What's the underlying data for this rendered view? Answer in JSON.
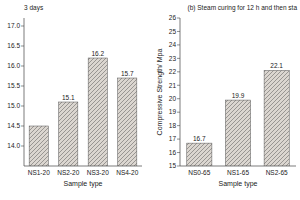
{
  "chart_data": [
    {
      "type": "bar",
      "subtitle": "3 days",
      "categories": [
        "NS1-20",
        "NS2-20",
        "NS3-20",
        "NS4-20"
      ],
      "values": [
        14.5,
        15.1,
        16.2,
        15.7
      ],
      "value_labels": [
        null,
        "15.1",
        "16.2",
        "15.7"
      ],
      "data_labels": true,
      "xlabel": "Sample type",
      "ylim": [
        13.5,
        17.2
      ],
      "yticks": [
        {
          "value": 14,
          "label": "14.0"
        },
        14.5,
        {
          "value": 15,
          "label": "15.0"
        },
        15.5,
        {
          "value": 16,
          "label": "16.0"
        },
        16.5,
        {
          "value": 17,
          "label": "17.0"
        }
      ],
      "color": "#dbd6d0",
      "grid": false
    },
    {
      "type": "bar",
      "subtitle": "(b) Steam curing for 12 h and then sta",
      "categories": [
        "NS0-65",
        "NS1-65",
        "NS2-65"
      ],
      "values": [
        16.7,
        19.9,
        22.1
      ],
      "data_labels": true,
      "xlabel": "Sample type",
      "ylabel": "Compressive Strength/ Mpa",
      "ylim": [
        15,
        26
      ],
      "yticks": [
        15,
        16,
        17,
        18,
        19,
        20,
        21,
        22,
        23,
        24,
        25,
        26
      ],
      "color": "#dbd6d0",
      "grid": false
    }
  ]
}
